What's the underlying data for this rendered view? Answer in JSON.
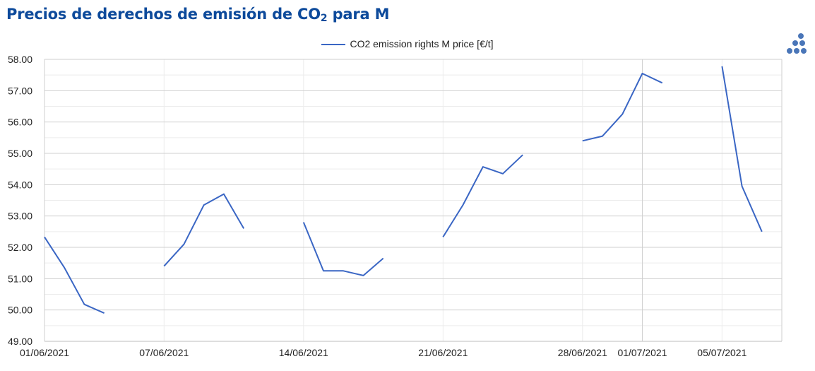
{
  "title": {
    "main": "Precios de derechos de emisión de CO",
    "sub": "2",
    "tail": " para M"
  },
  "legend": {
    "label": "CO2 emission rights M price [€/t]"
  },
  "colors": {
    "title": "#0d4a9b",
    "series": "#3a66c4",
    "logo": "#4a76b8",
    "grid_major": "#cfcfcf",
    "grid_minor": "#ececec"
  },
  "logo": {
    "icon": "dots-logo-icon"
  },
  "chart_data": {
    "type": "line",
    "x_axis_type": "date",
    "xlim": [
      "01/06/2021",
      "08/07/2021"
    ],
    "ylim": [
      49,
      58
    ],
    "yticks": [
      "49.00",
      "50.00",
      "51.00",
      "52.00",
      "53.00",
      "54.00",
      "55.00",
      "56.00",
      "57.00",
      "58.00"
    ],
    "xticks": [
      "01/06/2021",
      "07/06/2021",
      "14/06/2021",
      "21/06/2021",
      "28/06/2021",
      "01/07/2021",
      "05/07/2021"
    ],
    "grid": true,
    "legend_position": "top-center",
    "series": [
      {
        "name": "CO2 emission rights M price [€/t]",
        "points": [
          [
            "01/06/2021",
            52.33
          ],
          [
            "02/06/2021",
            51.35
          ],
          [
            "03/06/2021",
            50.18
          ],
          [
            "04/06/2021",
            49.9
          ],
          [
            "07/06/2021",
            51.4
          ],
          [
            "08/06/2021",
            52.1
          ],
          [
            "09/06/2021",
            53.35
          ],
          [
            "10/06/2021",
            53.7
          ],
          [
            "11/06/2021",
            52.6
          ],
          [
            "14/06/2021",
            52.8
          ],
          [
            "15/06/2021",
            51.25
          ],
          [
            "16/06/2021",
            51.25
          ],
          [
            "17/06/2021",
            51.1
          ],
          [
            "18/06/2021",
            51.65
          ],
          [
            "21/06/2021",
            52.33
          ],
          [
            "22/06/2021",
            53.35
          ],
          [
            "23/06/2021",
            54.57
          ],
          [
            "24/06/2021",
            54.35
          ],
          [
            "25/06/2021",
            54.95
          ],
          [
            "28/06/2021",
            55.4
          ],
          [
            "29/06/2021",
            55.55
          ],
          [
            "30/06/2021",
            56.25
          ],
          [
            "01/07/2021",
            57.55
          ],
          [
            "02/07/2021",
            57.25
          ],
          [
            "05/07/2021",
            57.78
          ],
          [
            "06/07/2021",
            53.95
          ],
          [
            "07/07/2021",
            52.5
          ]
        ]
      }
    ]
  }
}
